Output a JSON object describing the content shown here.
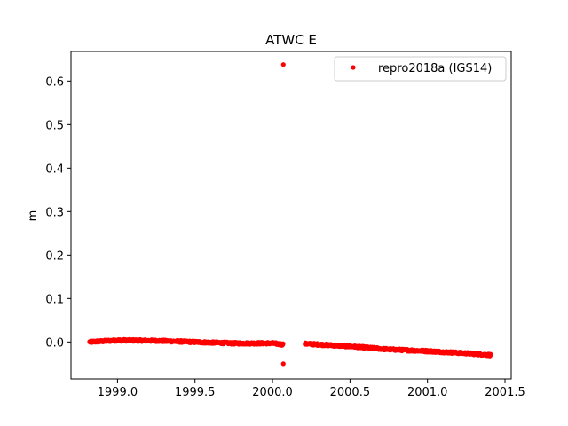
{
  "chart_data": {
    "type": "scatter",
    "title": "ATWC E",
    "xlabel": "",
    "ylabel": "m",
    "xlim": [
      1998.7,
      2001.54
    ],
    "ylim": [
      -0.085,
      0.668
    ],
    "xticks": [
      1999.0,
      1999.5,
      2000.0,
      2000.5,
      2001.0,
      2001.5
    ],
    "xtick_labels": [
      "1999.0",
      "1999.5",
      "2000.0",
      "2000.5",
      "2001.0",
      "2001.5"
    ],
    "yticks": [
      0.0,
      0.1,
      0.2,
      0.3,
      0.4,
      0.5,
      0.6
    ],
    "ytick_labels": [
      "0.0",
      "0.1",
      "0.2",
      "0.3",
      "0.4",
      "0.5",
      "0.6"
    ],
    "grid": false,
    "legend_position": "top-right",
    "series": [
      {
        "name": "repro2018a (IGS14)",
        "color": "#ff0000",
        "marker": "dot",
        "segments": [
          {
            "x_start": 1998.82,
            "x_end": 2000.07,
            "trend_points": [
              [
                1998.82,
                0.0
              ],
              [
                1999.0,
                0.004
              ],
              [
                1999.25,
                0.003
              ],
              [
                1999.5,
                0.0
              ],
              [
                1999.75,
                -0.003
              ],
              [
                2000.0,
                -0.003
              ],
              [
                2000.07,
                -0.006
              ]
            ],
            "scatter": 0.0025
          },
          {
            "x_start": 2000.21,
            "x_end": 2001.41,
            "trend_points": [
              [
                2000.21,
                -0.004
              ],
              [
                2000.5,
                -0.01
              ],
              [
                2000.75,
                -0.017
              ],
              [
                2001.0,
                -0.021
              ],
              [
                2001.25,
                -0.026
              ],
              [
                2001.41,
                -0.03
              ]
            ],
            "scatter": 0.0025
          }
        ],
        "outliers": [
          [
            2000.07,
            0.638
          ],
          [
            2000.07,
            -0.05
          ]
        ]
      }
    ]
  }
}
